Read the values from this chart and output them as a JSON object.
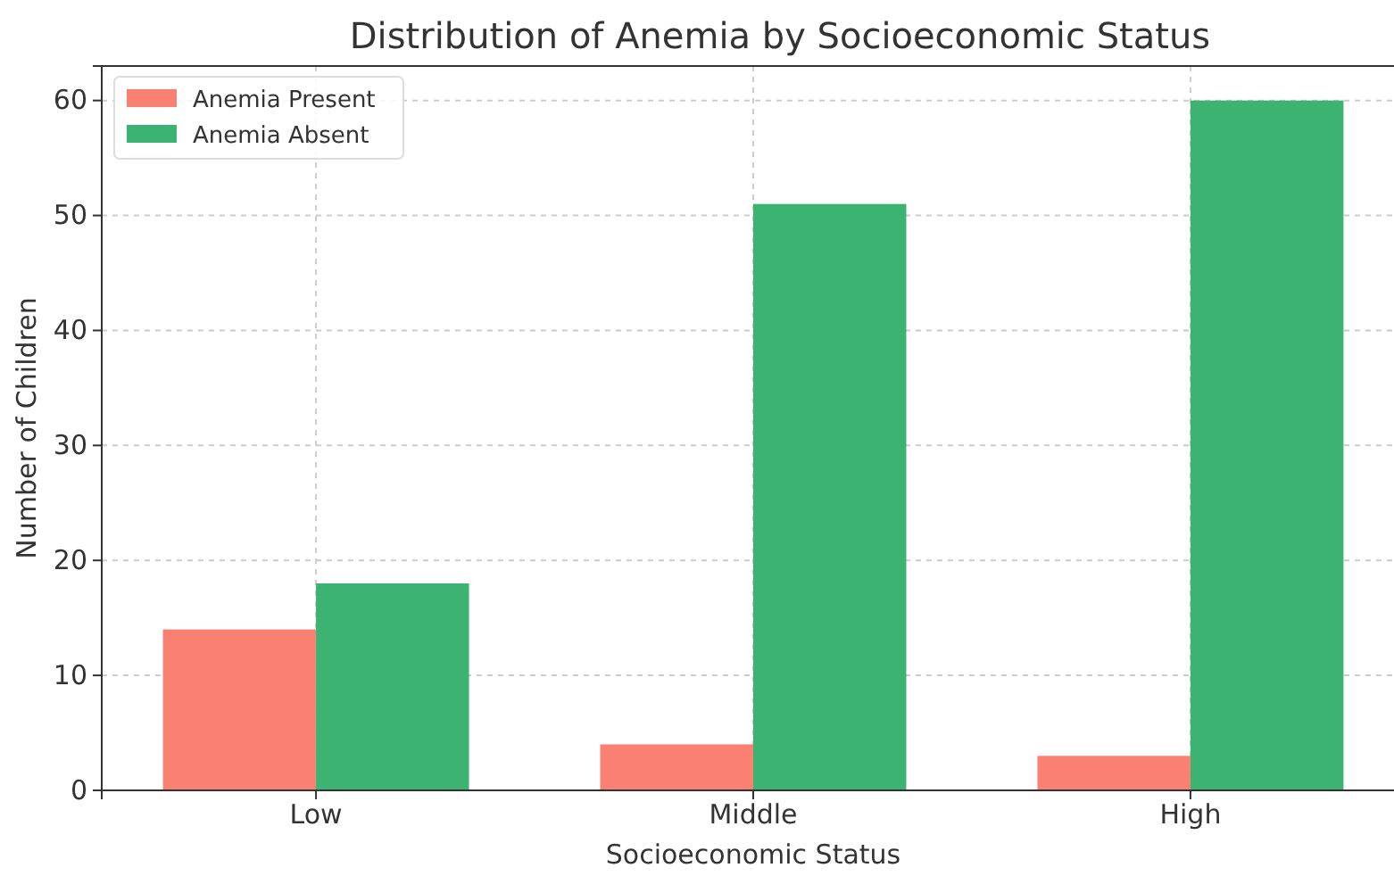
{
  "chart_data": {
    "type": "bar",
    "title": "Distribution of Anemia by Socioeconomic Status",
    "xlabel": "Socioeconomic Status",
    "ylabel": "Number of Children",
    "categories": [
      "Low",
      "Middle",
      "High"
    ],
    "series": [
      {
        "name": "Anemia Present",
        "color": "#fa8072",
        "values": [
          14,
          4,
          3
        ]
      },
      {
        "name": "Anemia Absent",
        "color": "#3cb371",
        "values": [
          18,
          51,
          60
        ]
      }
    ],
    "ylim": [
      0,
      63
    ],
    "yticks": [
      0,
      10,
      20,
      30,
      40,
      50,
      60
    ],
    "grid": true,
    "legend": "top left"
  }
}
